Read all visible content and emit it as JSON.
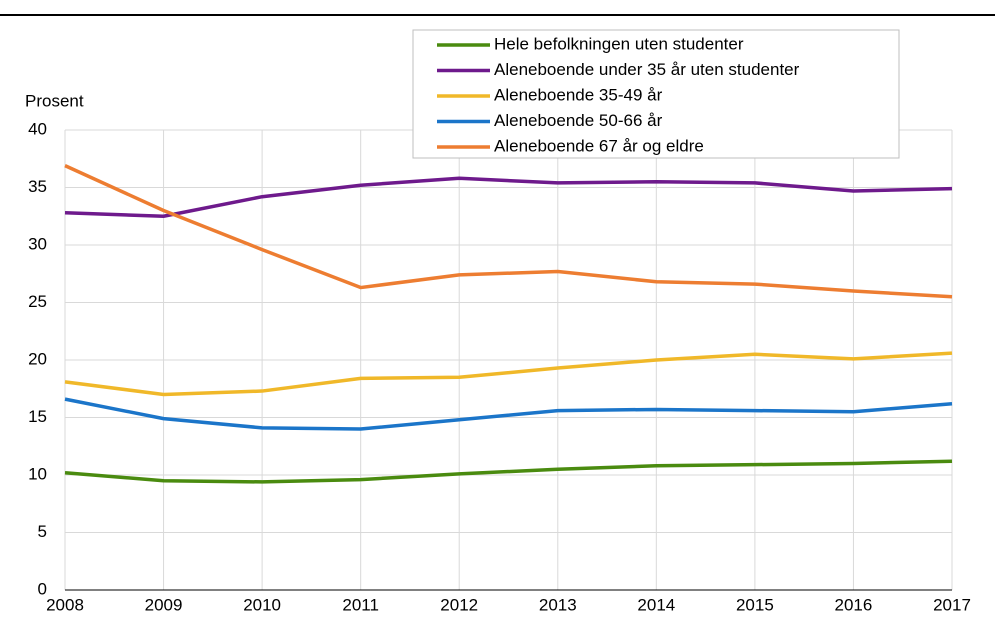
{
  "chart_data": {
    "type": "line",
    "y_label": "Prosent",
    "categories": [
      "2008",
      "2009",
      "2010",
      "2011",
      "2012",
      "2013",
      "2014",
      "2015",
      "2016",
      "2017"
    ],
    "series": [
      {
        "name": "Hele befolkningen uten studenter",
        "color": "#4a8b0f",
        "values": [
          10.2,
          9.5,
          9.4,
          9.6,
          10.1,
          10.5,
          10.8,
          10.9,
          11.0,
          11.2
        ]
      },
      {
        "name": "Aleneboende under 35 år uten studenter",
        "color": "#6e1a8c",
        "values": [
          32.8,
          32.5,
          34.2,
          35.2,
          35.8,
          35.4,
          35.5,
          35.4,
          34.7,
          34.9
        ]
      },
      {
        "name": "Aleneboende 35-49 år",
        "color": "#f0b829",
        "values": [
          18.1,
          17.0,
          17.3,
          18.4,
          18.5,
          19.3,
          20.0,
          20.5,
          20.1,
          20.6
        ]
      },
      {
        "name": "Aleneboende 50-66 år",
        "color": "#1b75c9",
        "values": [
          16.6,
          14.9,
          14.1,
          14.0,
          14.8,
          15.6,
          15.7,
          15.6,
          15.5,
          16.2
        ]
      },
      {
        "name": "Aleneboende 67 år og eldre",
        "color": "#ed7d31",
        "values": [
          36.9,
          33.0,
          29.6,
          26.3,
          27.4,
          27.7,
          26.8,
          26.6,
          26.0,
          25.5
        ]
      }
    ],
    "ylim": [
      0,
      40
    ],
    "yticks": [
      0,
      5,
      10,
      15,
      20,
      25,
      30,
      35,
      40
    ],
    "grid": true
  }
}
